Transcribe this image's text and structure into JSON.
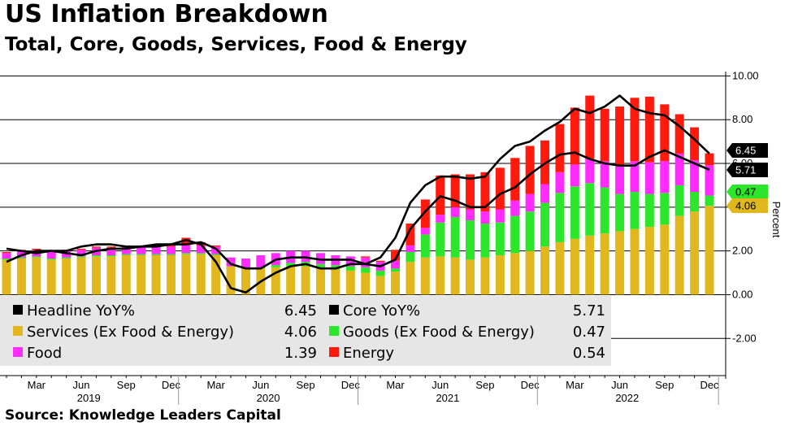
{
  "title": "US Inflation Breakdown",
  "subtitle": "Total, Core, Goods, Services, Food & Energy",
  "source": "Source: Knowledge Leaders Capital",
  "colors": {
    "services": "#e0b81e",
    "goods": "#2be62b",
    "food": "#ff2bff",
    "energy": "#ff1a0d",
    "headline": "#000000",
    "core": "#000000",
    "grid": "#000000",
    "legend_bg": "#e6e6e6"
  },
  "chart_data": {
    "type": "bar",
    "stacked": true,
    "ylabel": "Percent",
    "ylim": [
      -3.7,
      10.2
    ],
    "y_ticks": [
      10,
      8,
      6,
      4,
      2,
      0,
      -2
    ],
    "y_tick_labels": [
      "10.00",
      "8.00",
      "6.00",
      "4.00",
      "2.00",
      "0.00",
      "-2.00"
    ],
    "grid": true,
    "x_month_labels": [
      {
        "index": 2,
        "label": "Mar"
      },
      {
        "index": 5,
        "label": "Jun"
      },
      {
        "index": 8,
        "label": "Sep"
      },
      {
        "index": 11,
        "label": "Dec"
      },
      {
        "index": 14,
        "label": "Mar"
      },
      {
        "index": 17,
        "label": "Jun"
      },
      {
        "index": 20,
        "label": "Sep"
      },
      {
        "index": 23,
        "label": "Dec"
      },
      {
        "index": 26,
        "label": "Mar"
      },
      {
        "index": 29,
        "label": "Jun"
      },
      {
        "index": 32,
        "label": "Sep"
      },
      {
        "index": 35,
        "label": "Dec"
      },
      {
        "index": 38,
        "label": "Mar"
      },
      {
        "index": 41,
        "label": "Jun"
      },
      {
        "index": 44,
        "label": "Sep"
      },
      {
        "index": 47,
        "label": "Dec"
      }
    ],
    "x_year_labels": [
      {
        "start": 0,
        "label": "2019"
      },
      {
        "start": 12,
        "label": "2020"
      },
      {
        "start": 24,
        "label": "2021"
      },
      {
        "start": 36,
        "label": "2022"
      }
    ],
    "series": [
      {
        "name": "Services (Ex Food & Energy)",
        "key": "services",
        "last": "4.06",
        "values": [
          1.6,
          1.65,
          1.7,
          1.6,
          1.65,
          1.7,
          1.75,
          1.75,
          1.8,
          1.8,
          1.8,
          1.8,
          1.85,
          1.85,
          1.8,
          1.3,
          1.2,
          1.2,
          1.25,
          1.3,
          1.3,
          1.2,
          1.15,
          1.1,
          1.0,
          0.85,
          1.05,
          1.5,
          1.7,
          1.75,
          1.7,
          1.6,
          1.7,
          1.8,
          1.9,
          2.0,
          2.2,
          2.4,
          2.55,
          2.7,
          2.8,
          2.9,
          3.0,
          3.1,
          3.2,
          3.6,
          3.8,
          4.06
        ]
      },
      {
        "name": "Goods (Ex Food & Energy)",
        "key": "goods",
        "last": "0.47",
        "values": [
          0.05,
          0.05,
          0.05,
          0.05,
          0.05,
          0.05,
          0.05,
          0.05,
          0.05,
          0.05,
          0.05,
          0.05,
          0.05,
          0.05,
          0.05,
          0.0,
          0.0,
          0.05,
          0.1,
          0.15,
          0.2,
          0.2,
          0.2,
          0.2,
          0.25,
          0.25,
          0.15,
          0.45,
          1.05,
          1.55,
          1.85,
          1.8,
          1.55,
          1.5,
          1.7,
          1.8,
          2.0,
          2.25,
          2.4,
          2.4,
          2.1,
          1.7,
          1.7,
          1.5,
          1.45,
          1.4,
          0.9,
          0.47
        ]
      },
      {
        "name": "Food",
        "key": "food",
        "last": "1.39",
        "values": [
          0.25,
          0.3,
          0.3,
          0.3,
          0.3,
          0.3,
          0.35,
          0.35,
          0.35,
          0.35,
          0.35,
          0.35,
          0.35,
          0.35,
          0.35,
          0.4,
          0.45,
          0.55,
          0.55,
          0.55,
          0.5,
          0.5,
          0.45,
          0.45,
          0.45,
          0.4,
          0.35,
          0.3,
          0.3,
          0.35,
          0.45,
          0.5,
          0.55,
          0.6,
          0.7,
          0.8,
          0.85,
          0.95,
          1.0,
          1.1,
          1.2,
          1.3,
          1.4,
          1.45,
          1.45,
          1.45,
          1.45,
          1.39
        ]
      },
      {
        "name": "Energy",
        "key": "energy",
        "last": "0.54",
        "values": [
          0.05,
          0.05,
          0.05,
          0.05,
          0.05,
          0.05,
          0.05,
          0.05,
          0.05,
          0.05,
          0.05,
          0.05,
          0.35,
          0.15,
          0.05,
          0.0,
          0.0,
          0.0,
          0.0,
          0.0,
          0.0,
          0.0,
          0.0,
          0.0,
          0.05,
          0.05,
          0.5,
          1.0,
          1.3,
          1.8,
          1.5,
          1.6,
          1.8,
          1.9,
          1.95,
          2.2,
          2.0,
          2.2,
          2.6,
          2.9,
          2.4,
          2.7,
          2.9,
          3.0,
          2.6,
          1.8,
          1.5,
          0.54
        ]
      }
    ],
    "lines": [
      {
        "name": "Headline YoY%",
        "key": "headline",
        "last": "6.45",
        "values": [
          2.1,
          2.0,
          1.9,
          2.0,
          2.0,
          2.2,
          2.3,
          2.3,
          2.2,
          2.2,
          2.2,
          2.3,
          2.5,
          2.3,
          1.5,
          0.3,
          0.1,
          0.6,
          1.0,
          1.3,
          1.4,
          1.2,
          1.2,
          1.4,
          1.4,
          1.7,
          2.6,
          4.2,
          5.0,
          5.4,
          5.4,
          5.3,
          5.4,
          6.2,
          6.8,
          7.0,
          7.5,
          7.9,
          8.5,
          8.3,
          8.6,
          9.1,
          8.5,
          8.3,
          8.2,
          7.7,
          7.1,
          6.45
        ]
      },
      {
        "name": "Core YoY%",
        "key": "core",
        "last": "5.71",
        "values": [
          1.5,
          1.8,
          2.0,
          2.0,
          1.9,
          1.8,
          2.0,
          2.1,
          2.1,
          2.2,
          2.3,
          2.3,
          2.3,
          2.4,
          2.1,
          1.4,
          1.2,
          1.2,
          1.6,
          1.7,
          1.7,
          1.6,
          1.6,
          1.6,
          1.4,
          1.3,
          1.6,
          3.0,
          3.8,
          4.5,
          4.3,
          4.0,
          4.0,
          4.6,
          4.9,
          5.5,
          6.0,
          6.4,
          6.5,
          6.2,
          6.0,
          5.9,
          5.9,
          6.3,
          6.6,
          6.3,
          6.0,
          5.71
        ]
      }
    ]
  }
}
